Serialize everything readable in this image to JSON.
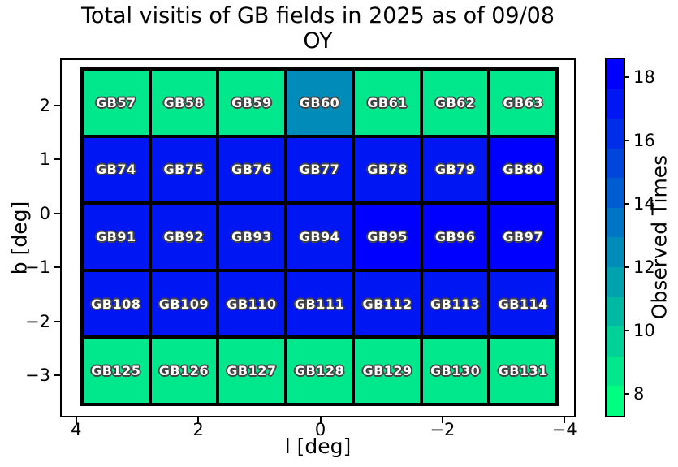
{
  "chart_data": {
    "type": "heatmap",
    "title_lines": [
      "Total visitis of GB fields in 2025 as of 09/08",
      "OY"
    ],
    "xlabel": "l [deg]",
    "ylabel": "b [deg]",
    "colorbar_label": "Observed Times",
    "xlim": [
      4.25,
      -4.17
    ],
    "ylim": [
      2.86,
      -3.77
    ],
    "x_ticks": [
      4,
      2,
      0,
      -2,
      -4
    ],
    "y_ticks": [
      2,
      1,
      0,
      -1,
      -2,
      -3
    ],
    "colorbar_ticks": [
      8,
      10,
      12,
      14,
      16,
      18
    ],
    "colorbar_range": [
      7.3,
      18.56
    ],
    "colorbar_band_colors_bottom_to_top": [
      "#00ff80",
      "#00e88b",
      "#00d197",
      "#00b9a2",
      "#00a2ae",
      "#008bb9",
      "#0074c5",
      "#005dd1",
      "#0046dc",
      "#002ee8",
      "#0017f3",
      "#0000ff"
    ],
    "grid_extent": {
      "l": [
        3.89,
        -3.89
      ],
      "b": [
        2.68,
        -3.54
      ]
    },
    "l_centers": [
      3.34,
      2.23,
      1.11,
      0.0,
      -1.11,
      -2.23,
      -3.34
    ],
    "rows": [
      {
        "b_center": 2.05,
        "cells": [
          {
            "label": "GB57",
            "value": 8,
            "color": "#00e88b"
          },
          {
            "label": "GB58",
            "value": 8,
            "color": "#00e88b"
          },
          {
            "label": "GB59",
            "value": 8,
            "color": "#00e88b"
          },
          {
            "label": "GB60",
            "value": 12,
            "color": "#008bb9"
          },
          {
            "label": "GB61",
            "value": 8,
            "color": "#00e88b"
          },
          {
            "label": "GB62",
            "value": 8,
            "color": "#00e88b"
          },
          {
            "label": "GB63",
            "value": 8,
            "color": "#00e88b"
          }
        ]
      },
      {
        "b_center": 0.81,
        "cells": [
          {
            "label": "GB74",
            "value": 17,
            "color": "#0017f3"
          },
          {
            "label": "GB75",
            "value": 17,
            "color": "#0017f3"
          },
          {
            "label": "GB76",
            "value": 17,
            "color": "#0017f3"
          },
          {
            "label": "GB77",
            "value": 17,
            "color": "#0017f3"
          },
          {
            "label": "GB78",
            "value": 17,
            "color": "#0017f3"
          },
          {
            "label": "GB79",
            "value": 17,
            "color": "#0017f3"
          },
          {
            "label": "GB80",
            "value": 18,
            "color": "#0000ff"
          }
        ]
      },
      {
        "b_center": -0.42,
        "cells": [
          {
            "label": "GB91",
            "value": 17,
            "color": "#0017f3"
          },
          {
            "label": "GB92",
            "value": 17,
            "color": "#0017f3"
          },
          {
            "label": "GB93",
            "value": 17,
            "color": "#0017f3"
          },
          {
            "label": "GB94",
            "value": 17,
            "color": "#0017f3"
          },
          {
            "label": "GB95",
            "value": 18,
            "color": "#0000ff"
          },
          {
            "label": "GB96",
            "value": 18,
            "color": "#0000ff"
          },
          {
            "label": "GB97",
            "value": 18,
            "color": "#0000ff"
          }
        ]
      },
      {
        "b_center": -1.67,
        "cells": [
          {
            "label": "GB108",
            "value": 17,
            "color": "#0017f3"
          },
          {
            "label": "GB109",
            "value": 17,
            "color": "#0017f3"
          },
          {
            "label": "GB110",
            "value": 17,
            "color": "#0017f3"
          },
          {
            "label": "GB111",
            "value": 17,
            "color": "#0017f3"
          },
          {
            "label": "GB112",
            "value": 17,
            "color": "#0017f3"
          },
          {
            "label": "GB113",
            "value": 17,
            "color": "#0017f3"
          },
          {
            "label": "GB114",
            "value": 17,
            "color": "#0017f3"
          }
        ]
      },
      {
        "b_center": -2.92,
        "cells": [
          {
            "label": "GB125",
            "value": 8,
            "color": "#00e88b"
          },
          {
            "label": "GB126",
            "value": 8,
            "color": "#00e88b"
          },
          {
            "label": "GB127",
            "value": 8,
            "color": "#00e88b"
          },
          {
            "label": "GB128",
            "value": 8,
            "color": "#00e88b"
          },
          {
            "label": "GB129",
            "value": 8,
            "color": "#00e88b"
          },
          {
            "label": "GB130",
            "value": 8,
            "color": "#00e88b"
          },
          {
            "label": "GB131",
            "value": 8,
            "color": "#00e88b"
          }
        ]
      }
    ]
  }
}
